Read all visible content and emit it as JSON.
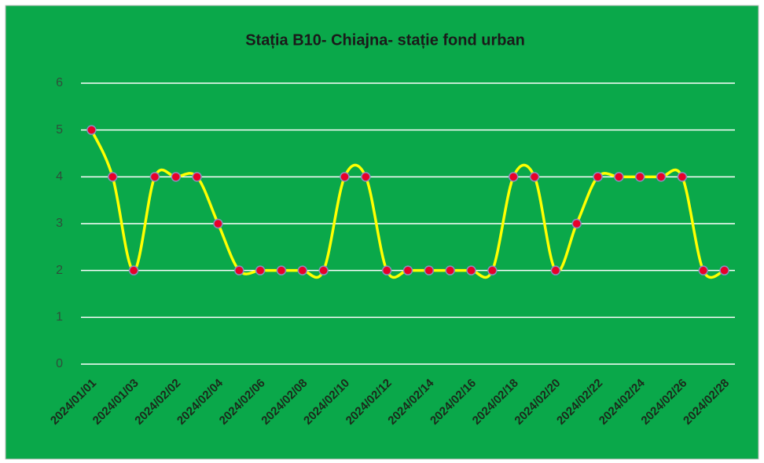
{
  "chart_data": {
    "type": "line",
    "title": "Stația B10- Chiajna- stație fond urban",
    "categories": [
      "2024/01/01",
      null,
      "2024/01/03",
      null,
      "2024/02/02",
      null,
      "2024/02/04",
      null,
      "2024/02/06",
      null,
      "2024/02/08",
      null,
      "2024/02/10",
      null,
      "2024/02/12",
      null,
      "2024/02/14",
      null,
      "2024/02/16",
      null,
      "2024/02/18",
      null,
      "2024/02/20",
      null,
      "2024/02/22",
      null,
      "2024/02/24",
      null,
      "2024/02/26",
      null,
      "2024/02/28"
    ],
    "series": [
      {
        "color": "#ffff00",
        "marker_color": "#e8002a",
        "values": [
          5,
          4,
          2,
          4,
          4,
          4,
          3,
          2,
          2,
          2,
          2,
          2,
          4,
          4,
          2,
          2,
          2,
          2,
          2,
          2,
          4,
          4,
          2,
          3,
          4,
          4,
          4,
          4,
          4,
          2,
          2
        ]
      }
    ],
    "ylim": [
      0,
      6
    ],
    "yticks": [
      0,
      1,
      2,
      3,
      4,
      5,
      6
    ],
    "grid": true,
    "smooth": true
  }
}
